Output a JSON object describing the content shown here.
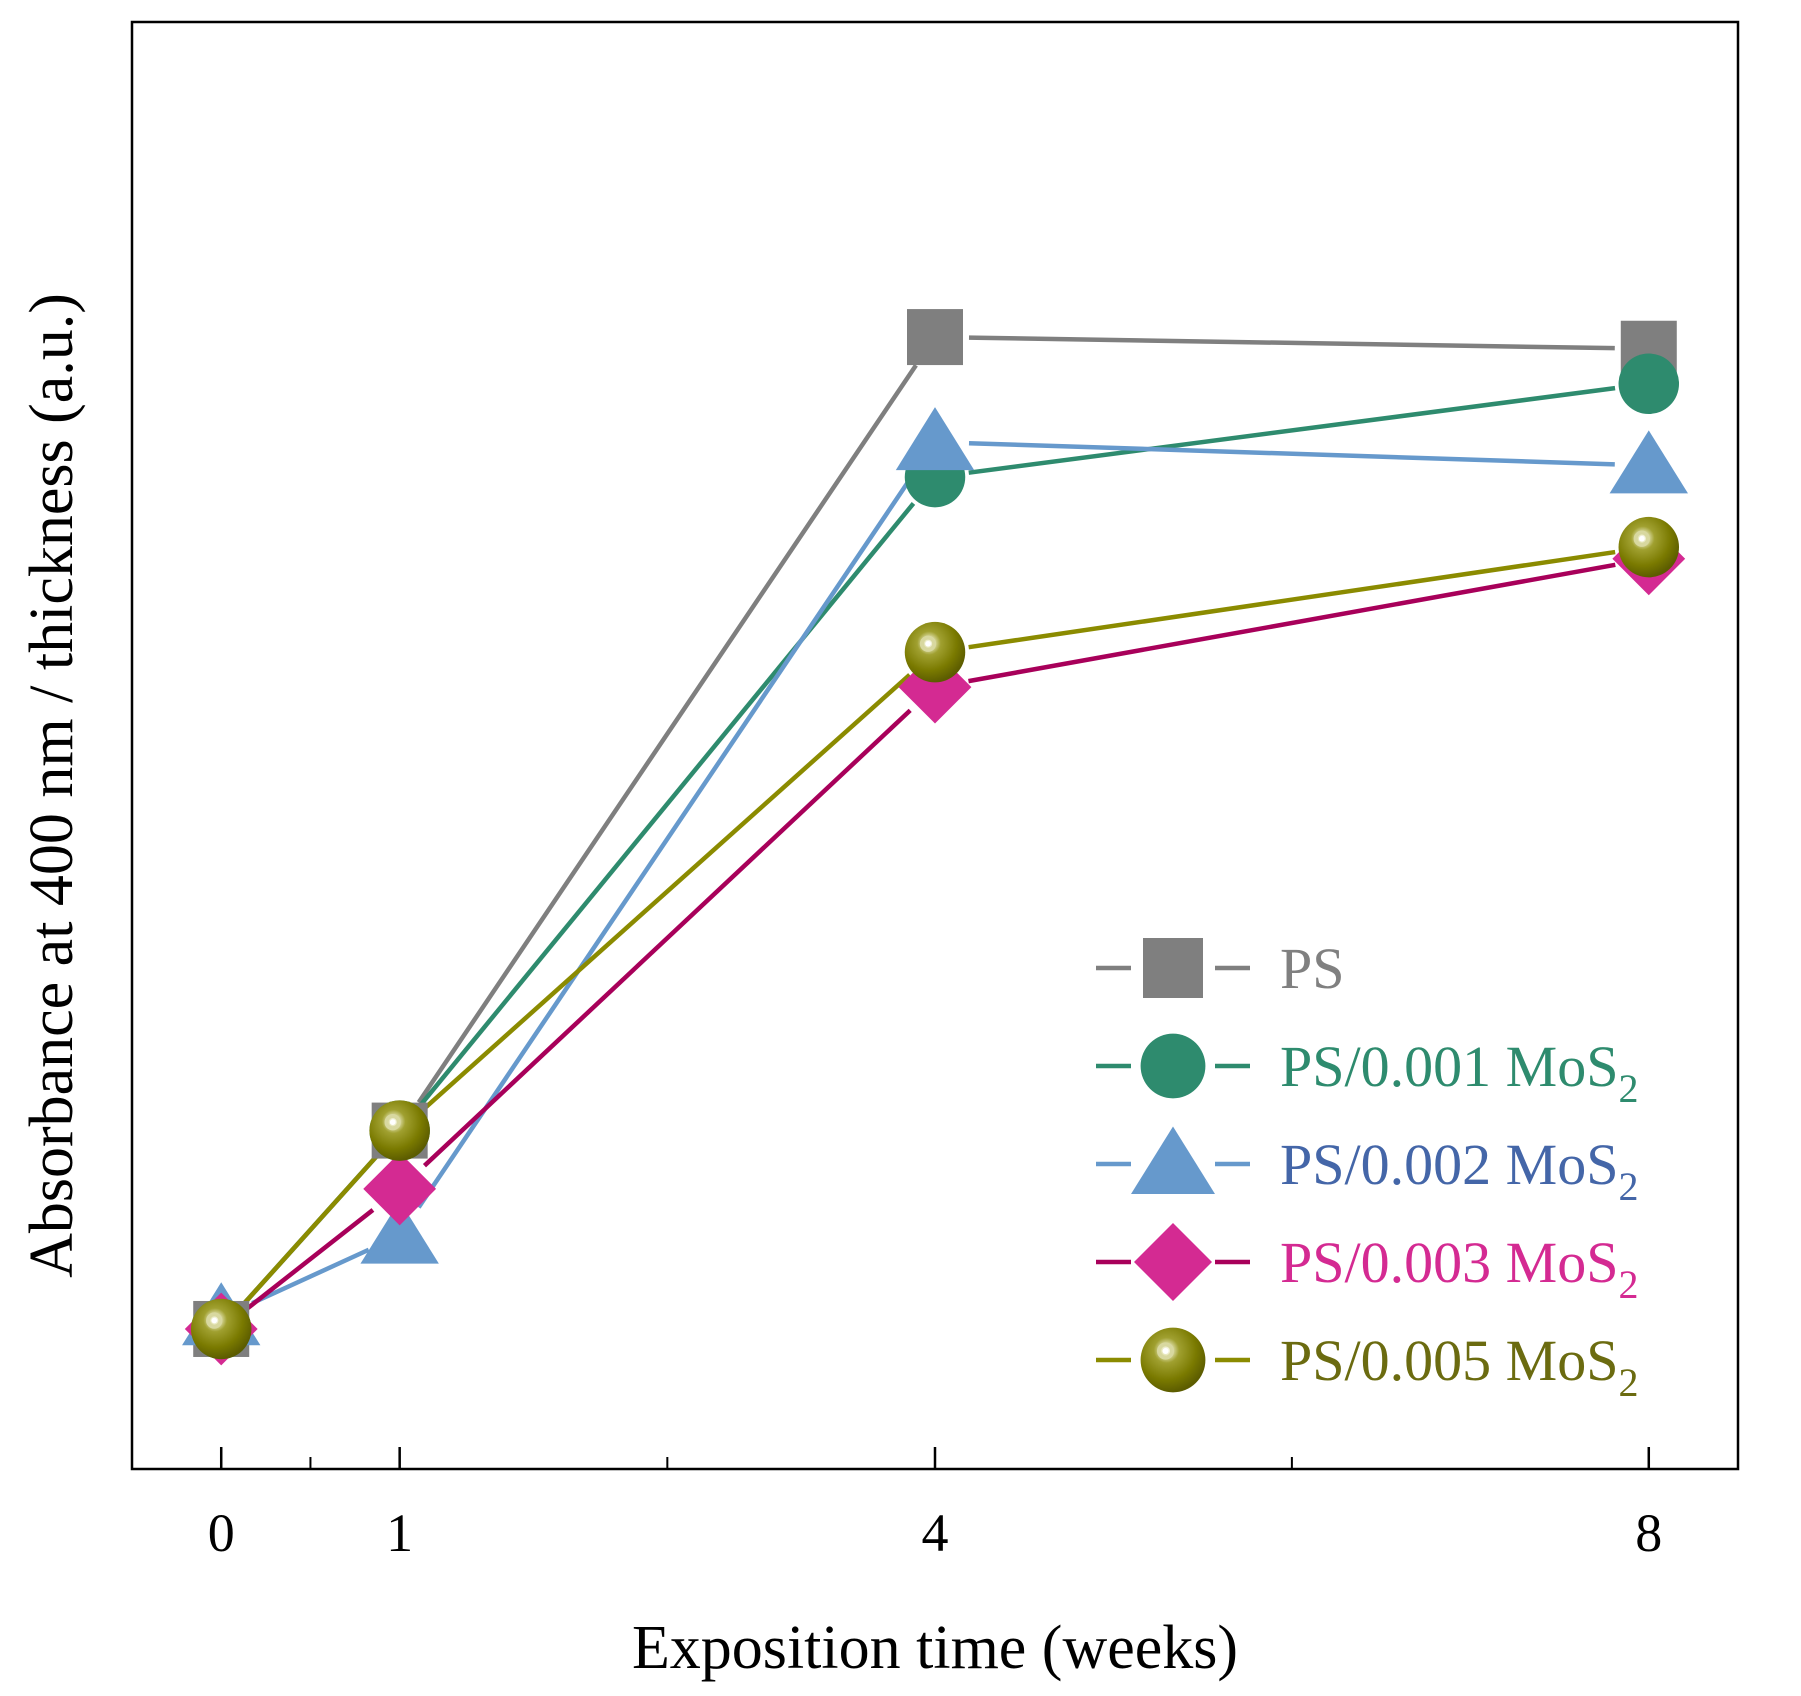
{
  "chart_data": {
    "type": "line",
    "xlabel": "Exposition time (weeks)",
    "ylabel": "Absorbance at 400 nm / thickness (a.u.)",
    "x": [
      0,
      1,
      4,
      8
    ],
    "x_tick_labels": [
      "0",
      "1",
      "4",
      "8"
    ],
    "xlim": [
      -0.5,
      8.5
    ],
    "ylim": [
      -0.12,
      1.12
    ],
    "y_ticks_labeled": false,
    "grid": false,
    "legend_position": "bottom-right",
    "series": [
      {
        "name": "PS",
        "label_main": "PS",
        "label_sub": "",
        "marker": "square",
        "line_color": "#7f7f7f",
        "marker_color": "#7f7f7f",
        "text_color": "#808080",
        "values": [
          0.0,
          0.17,
          0.85,
          0.84
        ]
      },
      {
        "name": "PS/0.001 MoS2",
        "label_main": "PS/0.001 MoS",
        "label_sub": "2",
        "marker": "circle",
        "line_color": "#2e8b6e",
        "marker_color": "#2e8b6e",
        "text_color": "#2e8b6e",
        "values": [
          0.0,
          0.17,
          0.73,
          0.81
        ]
      },
      {
        "name": "PS/0.002 MoS2",
        "label_main": "PS/0.002 MoS",
        "label_sub": "2",
        "marker": "triangle",
        "line_color": "#6699cc",
        "marker_color": "#6699cc",
        "text_color": "#4466a8",
        "values": [
          0.01,
          0.08,
          0.76,
          0.74
        ]
      },
      {
        "name": "PS/0.003 MoS2",
        "label_main": "PS/0.003 MoS",
        "label_sub": "2",
        "marker": "diamond",
        "line_color": "#a8005a",
        "marker_color": "#d42a92",
        "text_color": "#d42a92",
        "values": [
          0.0,
          0.12,
          0.55,
          0.66
        ]
      },
      {
        "name": "PS/0.005 MoS2",
        "label_main": "PS/0.005 MoS",
        "label_sub": "2",
        "marker": "sphere",
        "line_color": "#8b8b00",
        "marker_color": "#7a7a00",
        "text_color": "#6b6b10",
        "values": [
          0.0,
          0.17,
          0.58,
          0.67
        ]
      }
    ]
  }
}
